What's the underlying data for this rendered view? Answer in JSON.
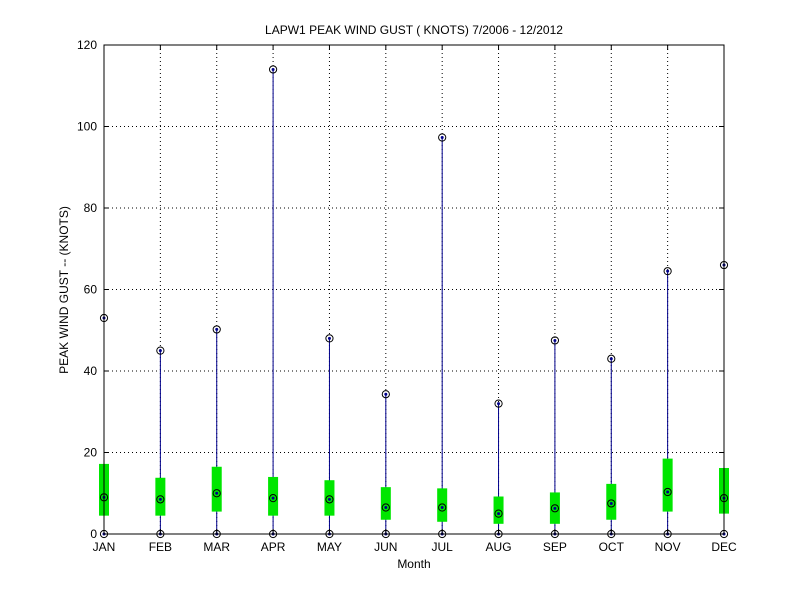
{
  "chart_data": {
    "type": "box",
    "title": "LAPW1  PEAK WIND GUST ( KNOTS) 7/2006 - 12/2012",
    "xlabel": "Month",
    "ylabel": "PEAK WIND GUST -- (KNOTS)",
    "ylim": [
      0,
      120
    ],
    "yticks": [
      0,
      20,
      40,
      60,
      80,
      100,
      120
    ],
    "grid": true,
    "categories": [
      "JAN",
      "FEB",
      "MAR",
      "APR",
      "MAY",
      "JUN",
      "JUL",
      "AUG",
      "SEP",
      "OCT",
      "NOV",
      "DEC"
    ],
    "series": [
      {
        "min": [
          0,
          0,
          0,
          0,
          0,
          0,
          0,
          0,
          0,
          0,
          0,
          0
        ],
        "q1": [
          4.5,
          4.5,
          5.5,
          4.5,
          4.5,
          3.5,
          3.0,
          2.5,
          2.5,
          3.5,
          5.5,
          5.0
        ],
        "median": [
          9.0,
          8.5,
          10.0,
          8.8,
          8.5,
          6.5,
          6.5,
          5.0,
          6.3,
          7.5,
          10.3,
          8.8
        ],
        "q3": [
          17.2,
          13.8,
          16.5,
          14.0,
          13.2,
          11.5,
          11.2,
          9.2,
          10.2,
          12.3,
          18.5,
          16.2
        ],
        "max": [
          53.0,
          45.0,
          50.2,
          114.0,
          48.0,
          34.3,
          97.3,
          32.0,
          47.5,
          43.0,
          64.5,
          66.0
        ]
      }
    ],
    "colors": {
      "whisker": "#00008b",
      "box": "#00e600",
      "marker": "#000000",
      "grid": "#000000"
    }
  }
}
